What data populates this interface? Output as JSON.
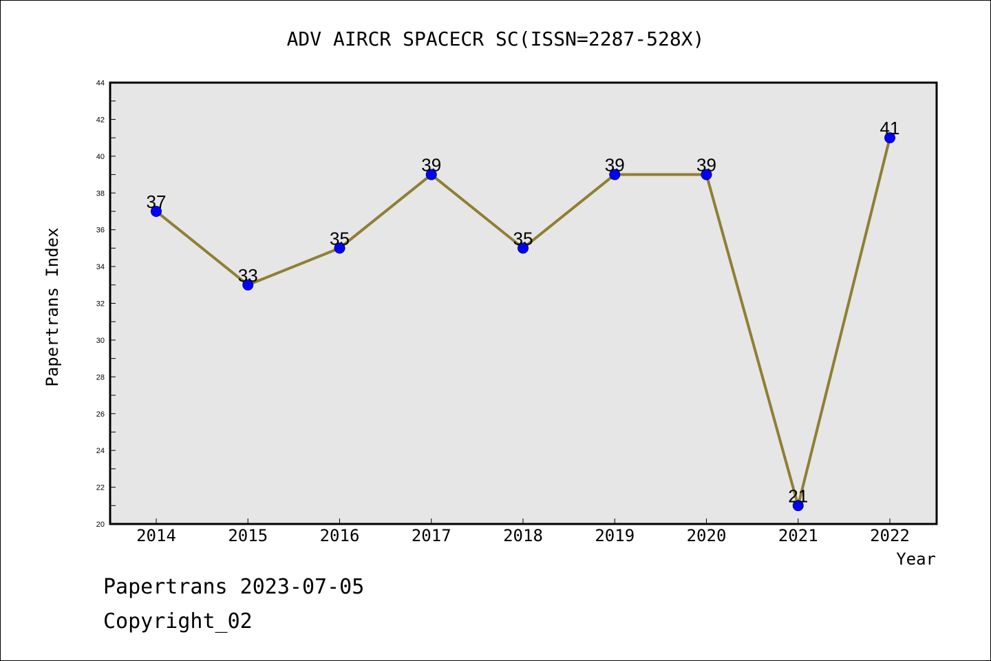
{
  "chart_data": {
    "type": "line",
    "title": "ADV AIRCR SPACECR SC(ISSN=2287-528X)",
    "xlabel": "Year",
    "ylabel": "Papertrans Index",
    "categories": [
      "2014",
      "2015",
      "2016",
      "2017",
      "2018",
      "2019",
      "2020",
      "2021",
      "2022"
    ],
    "values": [
      37,
      33,
      35,
      39,
      35,
      39,
      39,
      21,
      41
    ],
    "data_labels": [
      "37",
      "33",
      "35",
      "39",
      "35",
      "39",
      "39",
      "21",
      "41"
    ],
    "ylim": [
      20,
      44
    ],
    "y_ticks": [
      "20",
      "22",
      "24",
      "26",
      "28",
      "30",
      "32",
      "34",
      "36",
      "38",
      "40",
      "42",
      "44"
    ],
    "grid": false,
    "legend": "none",
    "colors": {
      "line": "#8f7f32",
      "marker": "#0000ff",
      "plot_background": "#e6e6e6"
    }
  },
  "footer": {
    "source": "Papertrans 2023-07-05",
    "copyright": "Copyright_02"
  }
}
